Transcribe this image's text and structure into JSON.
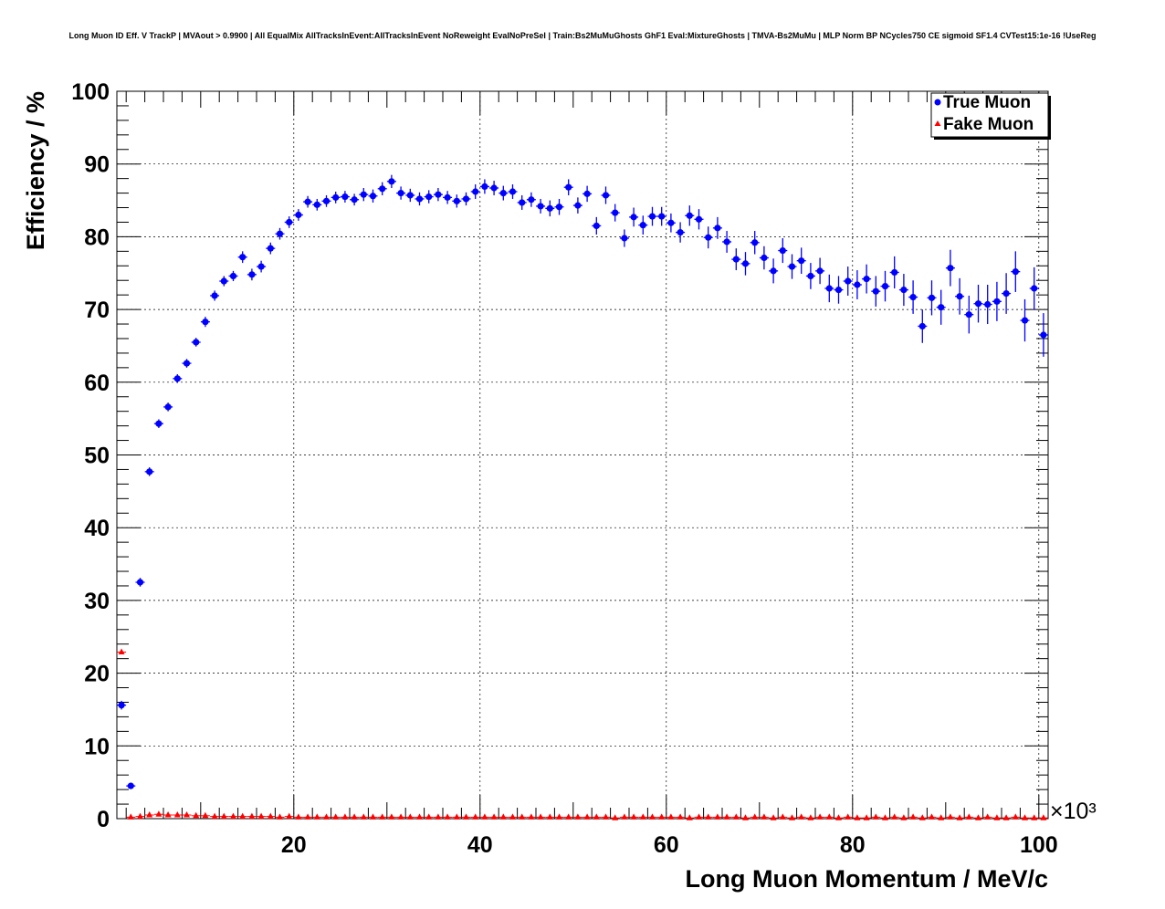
{
  "title": "Long Muon ID Eff. V TrackP | MVAout > 0.9900 | All EqualMix AllTracksInEvent:AllTracksInEvent NoReweight EvalNoPreSel | Train:Bs2MuMuGhosts GhF1 Eval:MixtureGhosts | TMVA-Bs2MuMu | MLP Norm BP NCycles750 CE sigmoid SF1.4 CVTest15:1e-16 !UseReg",
  "chart_data": {
    "type": "scatter",
    "title": "Long Muon ID Eff. V TrackP | MVAout > 0.9900 | All EqualMix AllTracksInEvent:AllTracksInEvent NoReweight EvalNoPreSel | Train:Bs2MuMuGhosts GhF1 Eval:MixtureGhosts | TMVA-Bs2MuMu | MLP Norm BP NCycles750 CE sigmoid SF1.4 CVTest15:1e-16 !UseReg",
    "xlabel": "Long Muon Momentum / MeV/c",
    "ylabel": "Efficiency / %",
    "x_multiplier_label": "×10³",
    "xlim": [
      1000,
      101000
    ],
    "ylim": [
      0,
      100
    ],
    "xticks": [
      20,
      40,
      60,
      80,
      100
    ],
    "yticks": [
      0,
      10,
      20,
      30,
      40,
      50,
      60,
      70,
      80,
      90,
      100
    ],
    "grid": true,
    "legend_position": "top-right",
    "colors": {
      "true_muon": "#0000ff",
      "fake_muon": "#ff0000"
    },
    "x": [
      1500,
      2500,
      3500,
      4500,
      5500,
      6500,
      7500,
      8500,
      9500,
      10500,
      11500,
      12500,
      13500,
      14500,
      15500,
      16500,
      17500,
      18500,
      19500,
      20500,
      21500,
      22500,
      23500,
      24500,
      25500,
      26500,
      27500,
      28500,
      29500,
      30500,
      31500,
      32500,
      33500,
      34500,
      35500,
      36500,
      37500,
      38500,
      39500,
      40500,
      41500,
      42500,
      43500,
      44500,
      45500,
      46500,
      47500,
      48500,
      49500,
      50500,
      51500,
      52500,
      53500,
      54500,
      55500,
      56500,
      57500,
      58500,
      59500,
      60500,
      61500,
      62500,
      63500,
      64500,
      65500,
      66500,
      67500,
      68500,
      69500,
      70500,
      71500,
      72500,
      73500,
      74500,
      75500,
      76500,
      77500,
      78500,
      79500,
      80500,
      81500,
      82500,
      83500,
      84500,
      85500,
      86500,
      87500,
      88500,
      89500,
      90500,
      91500,
      92500,
      93500,
      94500,
      95500,
      96500,
      97500,
      98500,
      99500,
      100500
    ],
    "series": [
      {
        "name": "True Muon",
        "marker": "circle",
        "values": [
          15.6,
          4.5,
          32.5,
          47.7,
          54.3,
          56.6,
          60.5,
          62.6,
          65.5,
          68.3,
          71.9,
          73.9,
          74.6,
          77.2,
          74.8,
          75.9,
          78.4,
          80.4,
          82.0,
          83.0,
          84.8,
          84.4,
          84.9,
          85.4,
          85.5,
          85.1,
          85.8,
          85.6,
          86.6,
          87.6,
          86.0,
          85.7,
          85.2,
          85.5,
          85.8,
          85.4,
          84.9,
          85.2,
          86.2,
          86.9,
          86.7,
          86.0,
          86.2,
          84.7,
          85.1,
          84.2,
          83.9,
          84.1,
          86.8,
          84.3,
          85.9,
          81.5,
          85.7,
          83.3,
          79.8,
          82.7,
          81.6,
          82.8,
          82.8,
          81.9,
          80.6,
          82.9,
          82.4,
          79.9,
          81.2,
          79.3,
          76.9,
          76.3,
          79.2,
          77.1,
          75.3,
          78.1,
          75.9,
          76.7,
          74.6,
          75.3,
          72.9,
          72.7,
          73.9,
          73.4,
          74.2,
          72.5,
          73.2,
          75.1,
          72.7,
          71.7,
          67.7,
          71.6,
          70.3,
          75.7,
          71.8,
          69.3,
          70.8,
          70.7,
          71.1,
          72.2,
          75.2,
          68.5,
          72.9,
          66.5
        ],
        "errors": [
          0.6,
          0.4,
          0.6,
          0.6,
          0.6,
          0.6,
          0.6,
          0.6,
          0.6,
          0.7,
          0.7,
          0.7,
          0.7,
          0.8,
          0.8,
          0.8,
          0.8,
          0.8,
          0.8,
          0.8,
          0.8,
          0.8,
          0.8,
          0.8,
          0.8,
          0.8,
          0.9,
          0.9,
          0.9,
          0.9,
          0.9,
          0.9,
          0.9,
          0.9,
          0.9,
          0.9,
          0.9,
          0.9,
          1.0,
          1.0,
          1.0,
          1.0,
          1.0,
          1.0,
          1.0,
          1.0,
          1.1,
          1.1,
          1.1,
          1.1,
          1.1,
          1.2,
          1.2,
          1.2,
          1.2,
          1.3,
          1.3,
          1.3,
          1.3,
          1.3,
          1.4,
          1.4,
          1.4,
          1.5,
          1.5,
          1.5,
          1.5,
          1.6,
          1.6,
          1.6,
          1.7,
          1.7,
          1.7,
          1.8,
          1.8,
          1.8,
          1.9,
          1.9,
          2.0,
          2.0,
          2.0,
          2.1,
          2.1,
          2.2,
          2.2,
          2.3,
          2.3,
          2.4,
          2.4,
          2.5,
          2.5,
          2.6,
          2.6,
          2.7,
          2.7,
          2.8,
          2.8,
          2.9,
          2.9,
          3.0
        ]
      },
      {
        "name": "Fake Muon",
        "marker": "triangle",
        "values": [
          22.9,
          0.2,
          0.3,
          0.5,
          0.6,
          0.5,
          0.5,
          0.5,
          0.4,
          0.4,
          0.3,
          0.3,
          0.3,
          0.3,
          0.3,
          0.3,
          0.3,
          0.2,
          0.3,
          0.2,
          0.2,
          0.2,
          0.2,
          0.2,
          0.2,
          0.2,
          0.2,
          0.2,
          0.2,
          0.2,
          0.2,
          0.2,
          0.2,
          0.2,
          0.2,
          0.2,
          0.2,
          0.2,
          0.2,
          0.2,
          0.2,
          0.2,
          0.2,
          0.2,
          0.2,
          0.2,
          0.2,
          0.2,
          0.2,
          0.2,
          0.2,
          0.2,
          0.2,
          0.1,
          0.2,
          0.2,
          0.2,
          0.2,
          0.2,
          0.2,
          0.2,
          0.1,
          0.2,
          0.2,
          0.2,
          0.2,
          0.2,
          0.1,
          0.2,
          0.2,
          0.1,
          0.2,
          0.1,
          0.2,
          0.1,
          0.2,
          0.2,
          0.1,
          0.2,
          0.1,
          0.1,
          0.2,
          0.1,
          0.2,
          0.1,
          0.2,
          0.1,
          0.2,
          0.1,
          0.2,
          0.1,
          0.2,
          0.1,
          0.2,
          0.1,
          0.1,
          0.2,
          0.1,
          0.1,
          0.1
        ]
      }
    ]
  }
}
